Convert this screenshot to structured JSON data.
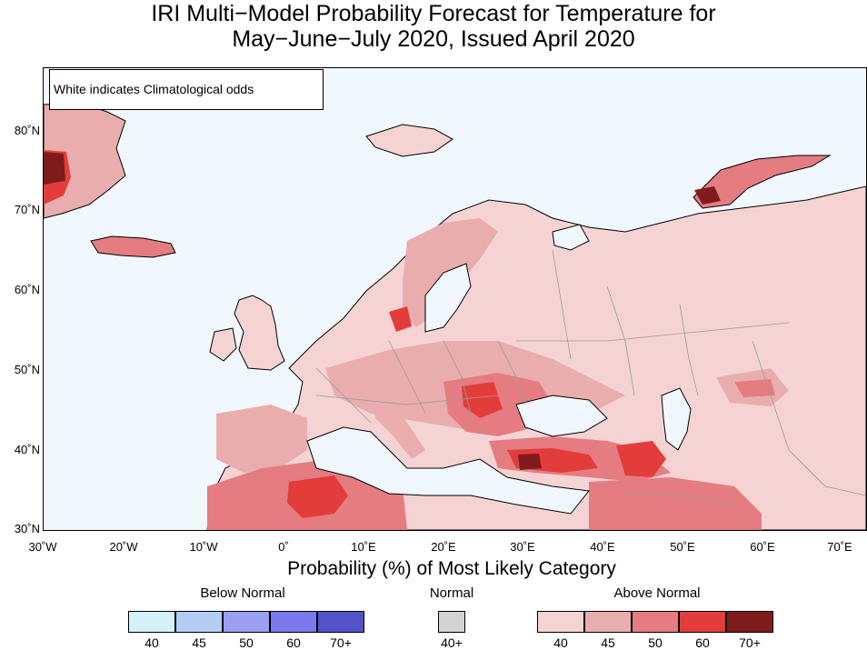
{
  "title_line1": "IRI Multi−Model Probability Forecast for Temperature for",
  "title_line2": "May−June−July 2020, Issued April 2020",
  "map_note": "White indicates Climatological odds",
  "lat_labels": [
    "80˚N",
    "70˚N",
    "60˚N",
    "50˚N",
    "40˚N",
    "30˚N"
  ],
  "lon_labels": [
    "30˚W",
    "20˚W",
    "10˚W",
    "0˚",
    "10˚E",
    "20˚E",
    "30˚E",
    "40˚E",
    "50˚E",
    "60˚E",
    "70˚E"
  ],
  "legend": {
    "title": "Probability (%) of Most Likely Category",
    "below_normal": {
      "label": "Below Normal",
      "bins": [
        "40",
        "45",
        "50",
        "60",
        "70+"
      ],
      "colors": [
        "#d2f1f8",
        "#b3cdf4",
        "#9b9ff1",
        "#7a78ec",
        "#5353c9"
      ]
    },
    "normal": {
      "label": "Normal",
      "bins": [
        "40+"
      ],
      "colors": [
        "#d3d3d3"
      ]
    },
    "above_normal": {
      "label": "Above Normal",
      "bins": [
        "40",
        "45",
        "50",
        "60",
        "70+"
      ],
      "colors": [
        "#f6d3d3",
        "#eaadad",
        "#e57c82",
        "#e33d3b",
        "#7f1b1b"
      ]
    }
  },
  "colors": {
    "ocean": "#f1f8fd",
    "land_outline": "#000000",
    "border": "#9a9a9a"
  }
}
